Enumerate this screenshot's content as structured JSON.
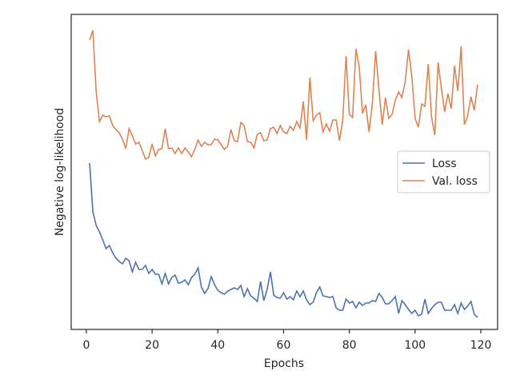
{
  "chart_data": {
    "type": "line",
    "xlabel": "Epochs",
    "ylabel": "Negative log-likelihood",
    "x": [
      1,
      2,
      3,
      4,
      5,
      6,
      7,
      8,
      9,
      10,
      11,
      12,
      13,
      14,
      15,
      16,
      17,
      18,
      19,
      20,
      21,
      22,
      23,
      24,
      25,
      26,
      27,
      28,
      29,
      30,
      31,
      32,
      33,
      34,
      35,
      36,
      37,
      38,
      39,
      40,
      41,
      42,
      43,
      44,
      45,
      46,
      47,
      48,
      49,
      50,
      51,
      52,
      53,
      54,
      55,
      56,
      57,
      58,
      59,
      60,
      61,
      62,
      63,
      64,
      65,
      66,
      67,
      68,
      69,
      70,
      71,
      72,
      73,
      74,
      75,
      76,
      77,
      78,
      79,
      80,
      81,
      82,
      83,
      84,
      85,
      86,
      87,
      88,
      89,
      90,
      91,
      92,
      93,
      94,
      95,
      96,
      97,
      98,
      99,
      100,
      101,
      102,
      103,
      104,
      105,
      106,
      107,
      108,
      109,
      110,
      111,
      112,
      113,
      114,
      115,
      116,
      117,
      118,
      119
    ],
    "series": [
      {
        "name": "Loss",
        "color": "#4c72b0",
        "values": [
          208,
          147,
          130,
          122,
          112,
          101,
          105,
          96,
          89,
          85,
          82,
          89,
          86,
          72,
          84,
          75,
          75,
          80,
          70,
          75,
          69,
          69,
          57,
          70,
          57,
          65,
          68,
          58,
          59,
          62,
          56,
          65,
          69,
          77,
          53,
          45,
          51,
          66,
          56,
          49,
          46,
          44,
          48,
          50,
          52,
          50,
          55,
          41,
          51,
          42,
          39,
          35,
          60,
          36,
          50,
          72,
          43,
          40,
          39,
          46,
          38,
          41,
          37,
          48,
          41,
          48,
          37,
          31,
          34,
          46,
          53,
          42,
          41,
          40,
          41,
          27,
          24,
          24,
          38,
          33,
          35,
          27,
          34,
          30,
          33,
          33,
          36,
          35,
          45,
          40,
          32,
          32,
          36,
          41,
          20,
          36,
          31,
          25,
          20,
          24,
          17,
          19,
          38,
          20,
          26,
          31,
          34,
          34,
          24,
          24,
          24,
          31,
          20,
          33,
          25,
          29,
          35,
          19,
          15
        ]
      },
      {
        "name": "Val. loss",
        "color": "#dd8452",
        "values": [
          362,
          374,
          297,
          260,
          268,
          266,
          267,
          255,
          250,
          246,
          238,
          226,
          251,
          242,
          232,
          234,
          224,
          213,
          215,
          232,
          217,
          225,
          226,
          251,
          226,
          227,
          220,
          227,
          220,
          227,
          222,
          216,
          225,
          237,
          229,
          234,
          231,
          231,
          238,
          237,
          231,
          225,
          229,
          250,
          236,
          235,
          259,
          255,
          235,
          234,
          227,
          244,
          246,
          236,
          237,
          251,
          253,
          245,
          255,
          247,
          245,
          254,
          249,
          260,
          252,
          285,
          237,
          315,
          261,
          268,
          271,
          247,
          257,
          248,
          262,
          262,
          236,
          262,
          342,
          269,
          265,
          351,
          329,
          270,
          281,
          247,
          282,
          348,
          300,
          256,
          290,
          264,
          269,
          287,
          297,
          290,
          310,
          350,
          317,
          264,
          253,
          282,
          279,
          332,
          266,
          243,
          334,
          302,
          272,
          295,
          276,
          330,
          298,
          354,
          256,
          267,
          291,
          274,
          306
        ]
      }
    ],
    "xlim": [
      -4.6,
      125.1
    ],
    "xticks": [
      0,
      20,
      40,
      60,
      80,
      100,
      120
    ],
    "ylim": [
      0,
      394
    ],
    "legend": "center right"
  }
}
